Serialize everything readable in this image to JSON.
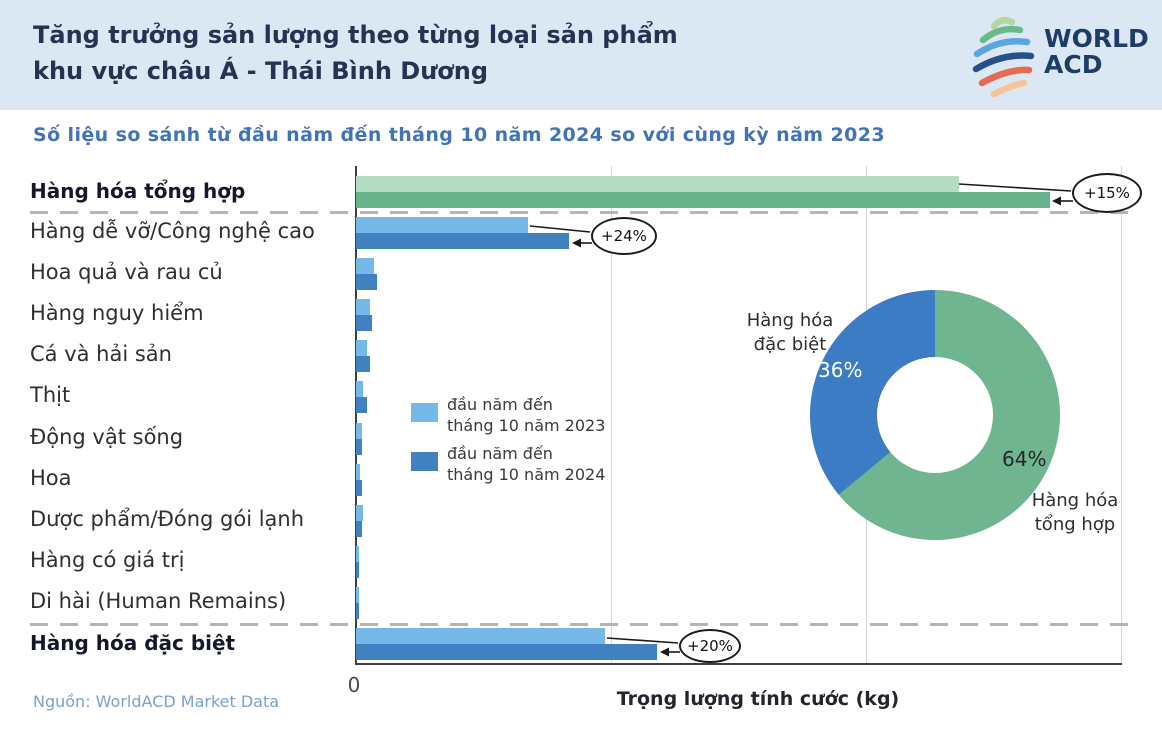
{
  "header": {
    "title_line1": "Tăng trưởng sản lượng theo từng loại sản phẩm",
    "title_line2": "khu vực châu Á - Thái Bình Dương",
    "logo": {
      "line1": "WORLD",
      "line2": "ACD",
      "arc_colors": [
        "#b5d79f",
        "#6cb888",
        "#5aa7e0",
        "#27508a",
        "#e56a50",
        "#f6c596"
      ],
      "text_color": "#1d3c66"
    }
  },
  "subtitle": "Số liệu so sánh từ đầu năm đến tháng 10 năm 2024 so với cùng kỳ năm 2023",
  "chart_data": [
    {
      "type": "bar",
      "orientation": "horizontal",
      "categories": [
        "Hàng hóa tổng hợp",
        "Hàng dễ vỡ/Công nghệ cao",
        "Hoa quả và rau củ",
        "Hàng nguy hiểm",
        "Cá và hải sản",
        "Thịt",
        "Động vật sống",
        "Hoa",
        "Dược phẩm/Đóng gói lạnh",
        "Hàng có giá trị",
        "Di hài (Human Remains)",
        "Hàng hóa đặc biệt"
      ],
      "emphasized_categories": [
        "Hàng hóa tổng hợp",
        "Hàng hóa đặc biệt"
      ],
      "series": [
        {
          "name": "đầu năm đến tháng 10 năm 2023",
          "values": [
            78.8,
            22.5,
            2.4,
            1.8,
            1.5,
            0.9,
            0.8,
            0.5,
            0.9,
            0.4,
            0.4,
            32.5
          ]
        },
        {
          "name": "đầu năm đến tháng 10 năm 2024",
          "values": [
            90.7,
            27.9,
            2.8,
            2.1,
            1.8,
            1.4,
            0.8,
            0.8,
            0.8,
            0.4,
            0.4,
            39.4
          ]
        }
      ],
      "value_scale": "relative units, axis origin 0, maximum gridline = 100",
      "x_tick_labels": [
        "0"
      ],
      "xlabel": "Trọng lượng tính cước (kg)",
      "colors": {
        "green_2023": "#b3dcc3",
        "green_2024": "#68b28c",
        "blue_2023": "#74b9e8",
        "blue_2024": "#4181c1"
      },
      "annotations": [
        {
          "category_index": 0,
          "label": "+15%"
        },
        {
          "category_index": 1,
          "label": "+24%"
        },
        {
          "category_index": 11,
          "label": "+20%"
        }
      ]
    },
    {
      "type": "pie",
      "subtype": "donut",
      "slices": [
        {
          "label": "Hàng hóa tổng hợp",
          "value": 64,
          "pct_label": "64%",
          "color": "#6fb590"
        },
        {
          "label": "Hàng hóa đặc biệt",
          "value": 36,
          "pct_label": "36%",
          "color": "#3b7cc4"
        }
      ]
    }
  ],
  "legend": {
    "items": [
      {
        "line1": "đầu năm đến",
        "line2": "tháng 10 năm 2023",
        "color": "#74b9e8"
      },
      {
        "line1": "đầu năm đến",
        "line2": "tháng 10 năm 2024",
        "color": "#4181c1"
      }
    ]
  },
  "footer": {
    "source": "Nguồn: WorldACD Market Data",
    "xlabel": "Trọng lượng tính cước (kg)",
    "zero_label": "0"
  }
}
